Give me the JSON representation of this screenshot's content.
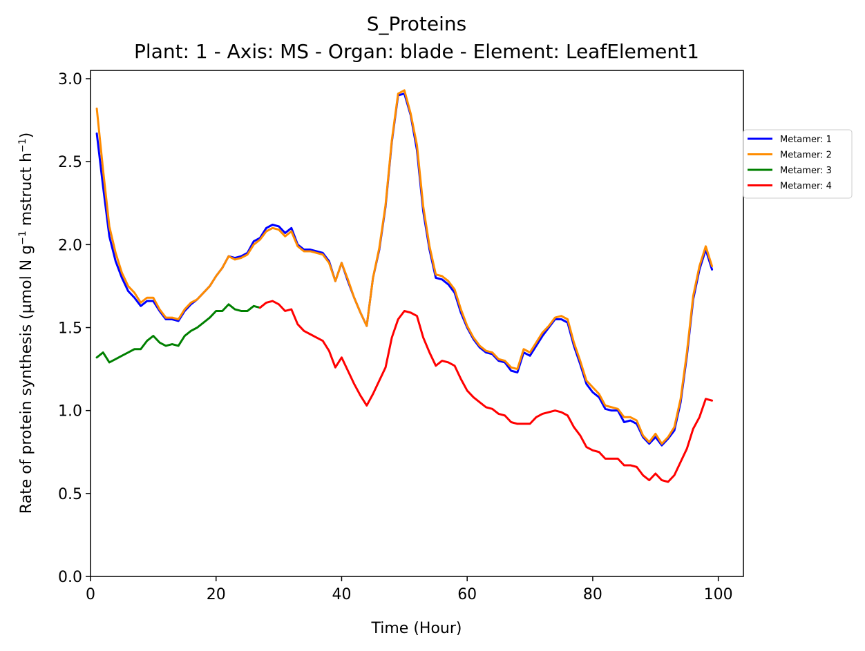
{
  "chart_data": {
    "type": "line",
    "title": "S_Proteins",
    "subtitle": "Plant: 1 - Axis: MS - Organ: blade - Element: LeafElement1",
    "xlabel": "Time (Hour)",
    "ylabel_main": "Rate of protein synthesis (µmol N g",
    "ylabel_exp1": "−1",
    "ylabel_mid": " mstruct h",
    "ylabel_exp2": "−1",
    "ylabel_end": ")",
    "xlim": [
      0,
      104
    ],
    "ylim": [
      0,
      3.05
    ],
    "xticks": [
      0,
      20,
      40,
      60,
      80,
      100
    ],
    "xtick_labels": [
      "0",
      "20",
      "40",
      "60",
      "80",
      "100"
    ],
    "yticks": [
      0,
      0.5,
      1,
      1.5,
      2,
      2.5,
      3
    ],
    "ytick_labels": [
      "0.0",
      "0.5",
      "1.0",
      "1.5",
      "2.0",
      "2.5",
      "3.0"
    ],
    "grid": false,
    "legend_position": "outside right, upper",
    "series": [
      {
        "name": "Metamer: 1",
        "color": "#0000ff",
        "x": [
          1,
          2,
          3,
          4,
          5,
          6,
          7,
          8,
          9,
          10,
          11,
          12,
          13,
          14,
          15,
          16,
          17,
          18,
          19,
          20,
          21,
          22,
          23,
          24,
          25,
          26,
          27,
          28,
          29,
          30,
          31,
          32,
          33,
          34,
          35,
          36,
          37,
          38,
          39,
          40,
          41,
          42,
          43,
          44,
          45,
          46,
          47,
          48,
          49,
          50,
          51,
          52,
          53,
          54,
          55,
          56,
          57,
          58,
          59,
          60,
          61,
          62,
          63,
          64,
          65,
          66,
          67,
          68,
          69,
          70,
          71,
          72,
          73,
          74,
          75,
          76,
          77,
          78,
          79,
          80,
          81,
          82,
          83,
          84,
          85,
          86,
          87,
          88,
          89,
          90,
          91,
          92,
          93,
          94,
          95,
          96,
          97,
          98,
          99
        ],
        "y": [
          2.67,
          2.35,
          2.05,
          1.9,
          1.8,
          1.72,
          1.68,
          1.63,
          1.66,
          1.66,
          1.6,
          1.55,
          1.55,
          1.54,
          1.6,
          1.64,
          1.67,
          1.71,
          1.75,
          1.81,
          1.86,
          1.93,
          1.92,
          1.93,
          1.95,
          2.02,
          2.04,
          2.1,
          2.12,
          2.11,
          2.07,
          2.1,
          2.0,
          1.97,
          1.97,
          1.96,
          1.95,
          1.9,
          1.78,
          1.89,
          1.78,
          1.68,
          1.59,
          1.51,
          1.8,
          1.97,
          2.23,
          2.62,
          2.9,
          2.91,
          2.78,
          2.57,
          2.2,
          1.97,
          1.8,
          1.79,
          1.76,
          1.71,
          1.59,
          1.5,
          1.43,
          1.38,
          1.35,
          1.34,
          1.3,
          1.29,
          1.24,
          1.23,
          1.35,
          1.33,
          1.39,
          1.45,
          1.5,
          1.55,
          1.55,
          1.53,
          1.39,
          1.28,
          1.16,
          1.11,
          1.08,
          1.01,
          1.0,
          1.0,
          0.93,
          0.94,
          0.92,
          0.84,
          0.8,
          0.84,
          0.79,
          0.83,
          0.88,
          1.05,
          1.33,
          1.67,
          1.85,
          1.97,
          1.85
        ]
      },
      {
        "name": "Metamer: 2",
        "color": "#ff8c00",
        "x": [
          1,
          2,
          3,
          4,
          5,
          6,
          7,
          8,
          9,
          10,
          11,
          12,
          13,
          14,
          15,
          16,
          17,
          18,
          19,
          20,
          21,
          22,
          23,
          24,
          25,
          26,
          27,
          28,
          29,
          30,
          31,
          32,
          33,
          34,
          35,
          36,
          37,
          38,
          39,
          40,
          41,
          42,
          43,
          44,
          45,
          46,
          47,
          48,
          49,
          50,
          51,
          52,
          53,
          54,
          55,
          56,
          57,
          58,
          59,
          60,
          61,
          62,
          63,
          64,
          65,
          66,
          67,
          68,
          69,
          70,
          71,
          72,
          73,
          74,
          75,
          76,
          77,
          78,
          79,
          80,
          81,
          82,
          83,
          84,
          85,
          86,
          87,
          88,
          89,
          90,
          91,
          92,
          93,
          94,
          95,
          96,
          97,
          98,
          99
        ],
        "y": [
          2.82,
          2.45,
          2.11,
          1.95,
          1.83,
          1.75,
          1.71,
          1.65,
          1.68,
          1.68,
          1.61,
          1.56,
          1.56,
          1.55,
          1.61,
          1.65,
          1.67,
          1.71,
          1.75,
          1.81,
          1.86,
          1.93,
          1.91,
          1.92,
          1.94,
          2.0,
          2.03,
          2.08,
          2.1,
          2.09,
          2.05,
          2.08,
          1.99,
          1.96,
          1.96,
          1.95,
          1.94,
          1.89,
          1.78,
          1.89,
          1.79,
          1.68,
          1.59,
          1.51,
          1.8,
          1.98,
          2.24,
          2.63,
          2.91,
          2.93,
          2.79,
          2.6,
          2.23,
          1.99,
          1.82,
          1.81,
          1.78,
          1.73,
          1.61,
          1.51,
          1.44,
          1.39,
          1.36,
          1.35,
          1.31,
          1.3,
          1.26,
          1.25,
          1.37,
          1.35,
          1.41,
          1.47,
          1.51,
          1.56,
          1.57,
          1.55,
          1.41,
          1.3,
          1.18,
          1.14,
          1.1,
          1.03,
          1.02,
          1.01,
          0.96,
          0.96,
          0.94,
          0.85,
          0.81,
          0.86,
          0.8,
          0.84,
          0.9,
          1.07,
          1.35,
          1.69,
          1.87,
          1.99,
          1.87
        ]
      },
      {
        "name": "Metamer: 3",
        "color": "#008000",
        "x": [
          1,
          2,
          3,
          4,
          5,
          6,
          7,
          8,
          9,
          10,
          11,
          12,
          13,
          14,
          15,
          16,
          17,
          18,
          19,
          20,
          21,
          22,
          23,
          24,
          25,
          26,
          27
        ],
        "y": [
          1.32,
          1.35,
          1.29,
          1.31,
          1.33,
          1.35,
          1.37,
          1.37,
          1.42,
          1.45,
          1.41,
          1.39,
          1.4,
          1.39,
          1.45,
          1.48,
          1.5,
          1.53,
          1.56,
          1.6,
          1.6,
          1.64,
          1.61,
          1.6,
          1.6,
          1.63,
          1.62
        ]
      },
      {
        "name": "Metamer: 4",
        "color": "#ff0000",
        "x": [
          27,
          28,
          29,
          30,
          31,
          32,
          33,
          34,
          35,
          36,
          37,
          38,
          39,
          40,
          41,
          42,
          43,
          44,
          45,
          46,
          47,
          48,
          49,
          50,
          51,
          52,
          53,
          54,
          55,
          56,
          57,
          58,
          59,
          60,
          61,
          62,
          63,
          64,
          65,
          66,
          67,
          68,
          69,
          70,
          71,
          72,
          73,
          74,
          75,
          76,
          77,
          78,
          79,
          80,
          81,
          82,
          83,
          84,
          85,
          86,
          87,
          88,
          89,
          90,
          91,
          92,
          93,
          94,
          95,
          96,
          97,
          98,
          99
        ],
        "y": [
          1.62,
          1.65,
          1.66,
          1.64,
          1.6,
          1.61,
          1.52,
          1.48,
          1.46,
          1.44,
          1.42,
          1.36,
          1.26,
          1.32,
          1.24,
          1.16,
          1.09,
          1.03,
          1.1,
          1.18,
          1.26,
          1.44,
          1.55,
          1.6,
          1.59,
          1.57,
          1.44,
          1.35,
          1.27,
          1.3,
          1.29,
          1.27,
          1.19,
          1.12,
          1.08,
          1.05,
          1.02,
          1.01,
          0.98,
          0.97,
          0.93,
          0.92,
          0.92,
          0.92,
          0.96,
          0.98,
          0.99,
          1.0,
          0.99,
          0.97,
          0.9,
          0.85,
          0.78,
          0.76,
          0.75,
          0.71,
          0.71,
          0.71,
          0.67,
          0.67,
          0.66,
          0.61,
          0.58,
          0.62,
          0.58,
          0.57,
          0.61,
          0.69,
          0.77,
          0.89,
          0.96,
          1.07,
          1.06
        ]
      }
    ]
  }
}
